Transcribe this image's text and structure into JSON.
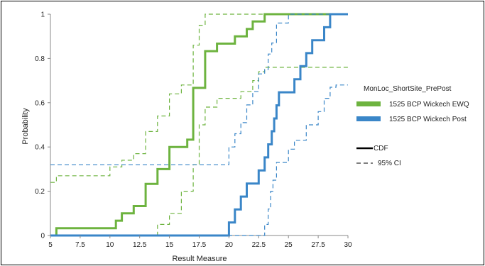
{
  "chart_data": {
    "type": "line",
    "xlabel": "Result Measure",
    "ylabel": "Probability",
    "xlim": [
      5,
      30
    ],
    "ylim": [
      0,
      1
    ],
    "x_ticks": [
      "5",
      "7.5",
      "10",
      "12.5",
      "15",
      "17.5",
      "20",
      "22.5",
      "25",
      "27.5",
      "30"
    ],
    "y_ticks": [
      "0",
      "0.2",
      "0.4",
      "0.6",
      "0.8",
      "1"
    ],
    "legend": {
      "title": "MonLoc_ShortSite_PrePost",
      "position": "right",
      "style_cdf": "CDF",
      "style_ci": "95% CI"
    },
    "colors": {
      "ewq": "#6db33f",
      "post": "#3a86c8"
    },
    "series": [
      {
        "name": "1525 BCP Wickech EWQ",
        "cdf": [
          [
            5,
            0
          ],
          [
            5.5,
            0
          ],
          [
            5.5,
            0.033
          ],
          [
            10.5,
            0.033
          ],
          [
            10.5,
            0.067
          ],
          [
            11,
            0.067
          ],
          [
            11,
            0.1
          ],
          [
            12,
            0.1
          ],
          [
            12,
            0.133
          ],
          [
            13,
            0.133
          ],
          [
            13,
            0.233
          ],
          [
            14,
            0.233
          ],
          [
            14,
            0.3
          ],
          [
            15,
            0.3
          ],
          [
            15,
            0.4
          ],
          [
            16.5,
            0.4
          ],
          [
            16.5,
            0.433
          ],
          [
            17,
            0.433
          ],
          [
            17,
            0.667
          ],
          [
            18,
            0.667
          ],
          [
            18,
            0.833
          ],
          [
            19,
            0.833
          ],
          [
            19,
            0.867
          ],
          [
            20.5,
            0.867
          ],
          [
            20.5,
            0.9
          ],
          [
            21.5,
            0.9
          ],
          [
            21.5,
            0.933
          ],
          [
            22,
            0.933
          ],
          [
            22,
            0.967
          ],
          [
            23,
            0.967
          ],
          [
            23,
            1
          ],
          [
            30,
            1
          ]
        ],
        "ci_lower": [
          [
            5,
            0
          ],
          [
            14,
            0
          ],
          [
            14,
            0.05
          ],
          [
            15,
            0.05
          ],
          [
            15,
            0.1
          ],
          [
            16,
            0.1
          ],
          [
            16,
            0.2
          ],
          [
            17,
            0.2
          ],
          [
            17,
            0.32
          ],
          [
            17.5,
            0.32
          ],
          [
            17.5,
            0.5
          ],
          [
            18,
            0.5
          ],
          [
            18,
            0.58
          ],
          [
            19,
            0.58
          ],
          [
            19,
            0.62
          ],
          [
            21,
            0.62
          ],
          [
            21,
            0.65
          ],
          [
            22,
            0.65
          ],
          [
            22,
            0.7
          ],
          [
            22.5,
            0.7
          ],
          [
            22.5,
            0.74
          ],
          [
            23,
            0.74
          ],
          [
            23,
            0.76
          ],
          [
            30,
            0.76
          ]
        ],
        "ci_upper": [
          [
            5,
            0.24
          ],
          [
            5.5,
            0.24
          ],
          [
            5.5,
            0.27
          ],
          [
            10,
            0.27
          ],
          [
            10,
            0.31
          ],
          [
            11,
            0.31
          ],
          [
            11,
            0.34
          ],
          [
            12,
            0.34
          ],
          [
            12,
            0.37
          ],
          [
            13,
            0.37
          ],
          [
            13,
            0.47
          ],
          [
            14,
            0.47
          ],
          [
            14,
            0.54
          ],
          [
            15,
            0.54
          ],
          [
            15,
            0.64
          ],
          [
            16,
            0.64
          ],
          [
            16,
            0.68
          ],
          [
            17,
            0.68
          ],
          [
            17,
            0.86
          ],
          [
            17.5,
            0.86
          ],
          [
            17.5,
            0.95
          ],
          [
            18,
            0.95
          ],
          [
            18,
            1
          ],
          [
            30,
            1
          ]
        ]
      },
      {
        "name": "1525 BCP Wickech Post",
        "cdf": [
          [
            5,
            0
          ],
          [
            20,
            0
          ],
          [
            20,
            0.059
          ],
          [
            20.5,
            0.059
          ],
          [
            20.5,
            0.118
          ],
          [
            21,
            0.118
          ],
          [
            21,
            0.176
          ],
          [
            21.5,
            0.176
          ],
          [
            21.5,
            0.235
          ],
          [
            22.5,
            0.235
          ],
          [
            22.5,
            0.294
          ],
          [
            23,
            0.294
          ],
          [
            23,
            0.353
          ],
          [
            23.3,
            0.353
          ],
          [
            23.3,
            0.412
          ],
          [
            23.6,
            0.412
          ],
          [
            23.6,
            0.471
          ],
          [
            23.8,
            0.471
          ],
          [
            23.8,
            0.529
          ],
          [
            24,
            0.529
          ],
          [
            24,
            0.588
          ],
          [
            24.2,
            0.588
          ],
          [
            24.2,
            0.647
          ],
          [
            25.5,
            0.647
          ],
          [
            25.5,
            0.706
          ],
          [
            26,
            0.706
          ],
          [
            26,
            0.765
          ],
          [
            26.5,
            0.765
          ],
          [
            26.5,
            0.824
          ],
          [
            27,
            0.824
          ],
          [
            27,
            0.882
          ],
          [
            28,
            0.882
          ],
          [
            28,
            0.941
          ],
          [
            28.5,
            0.941
          ],
          [
            28.5,
            1
          ],
          [
            30,
            1
          ]
        ],
        "ci_lower": [
          [
            5,
            0
          ],
          [
            23,
            0
          ],
          [
            23,
            0.05
          ],
          [
            23.3,
            0.05
          ],
          [
            23.3,
            0.12
          ],
          [
            23.5,
            0.12
          ],
          [
            23.5,
            0.2
          ],
          [
            23.7,
            0.2
          ],
          [
            23.7,
            0.25
          ],
          [
            24,
            0.25
          ],
          [
            24,
            0.33
          ],
          [
            25,
            0.33
          ],
          [
            25,
            0.39
          ],
          [
            25.5,
            0.39
          ],
          [
            25.5,
            0.43
          ],
          [
            26.5,
            0.43
          ],
          [
            26.5,
            0.5
          ],
          [
            27.5,
            0.5
          ],
          [
            27.5,
            0.56
          ],
          [
            28,
            0.56
          ],
          [
            28,
            0.62
          ],
          [
            28.5,
            0.62
          ],
          [
            28.5,
            0.67
          ],
          [
            29,
            0.67
          ],
          [
            29,
            0.68
          ],
          [
            30,
            0.68
          ]
        ],
        "ci_upper": [
          [
            5,
            0.32
          ],
          [
            20,
            0.32
          ],
          [
            20,
            0.4
          ],
          [
            20.5,
            0.4
          ],
          [
            20.5,
            0.46
          ],
          [
            21,
            0.46
          ],
          [
            21,
            0.51
          ],
          [
            21.5,
            0.51
          ],
          [
            21.5,
            0.59
          ],
          [
            22,
            0.59
          ],
          [
            22,
            0.65
          ],
          [
            22.5,
            0.65
          ],
          [
            22.5,
            0.73
          ],
          [
            23,
            0.73
          ],
          [
            23,
            0.75
          ],
          [
            23.3,
            0.75
          ],
          [
            23.3,
            0.82
          ],
          [
            23.6,
            0.82
          ],
          [
            23.6,
            0.87
          ],
          [
            24,
            0.87
          ],
          [
            24,
            0.96
          ],
          [
            25,
            0.96
          ],
          [
            25,
            1
          ],
          [
            30,
            1
          ]
        ]
      }
    ]
  }
}
